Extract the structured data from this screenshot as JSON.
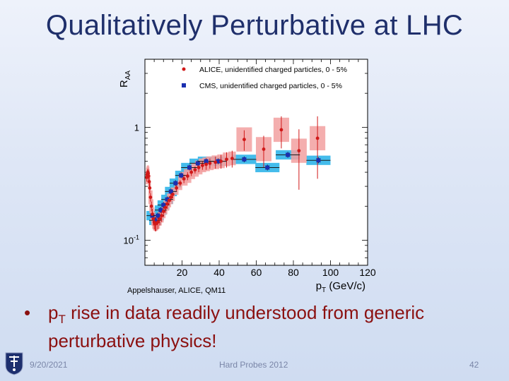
{
  "slide": {
    "title": "Qualitatively Perturbative at LHC",
    "credit": "Appelshauser, ALICE, QM11",
    "bullet_prefix": "p",
    "bullet_sub": "T",
    "bullet_text": " rise in data readily understood from generic perturbative physics!",
    "footer_date": "9/20/2021",
    "footer_center": "Hard Probes 2012",
    "footer_page": "42",
    "colors": {
      "title": "#1f2f6b",
      "bullet": "#8b1010",
      "alice": "#d01818",
      "cms": "#1a2fb0",
      "alice_band": "#f2a0a0",
      "cms_band": "#3ab8ea"
    }
  },
  "chart_data": {
    "type": "scatter",
    "xlabel": "pT (GeV/c)",
    "xlabel_main": "p",
    "xlabel_sub": "T",
    "xlabel_unit": " (GeV/c)",
    "ylabel_main": "R",
    "ylabel_sub": "AA",
    "xlim": [
      0,
      120
    ],
    "ylim": [
      0.06,
      4.0
    ],
    "yscale": "log",
    "xticks": [
      20,
      40,
      60,
      80,
      100,
      120
    ],
    "xtick_labels": [
      "20",
      "40",
      "60",
      "80",
      "100",
      "120"
    ],
    "yticks": [
      {
        "value": 1,
        "label": "1",
        "exp": ""
      },
      {
        "value": 0.1,
        "label": "10",
        "exp": "-1"
      }
    ],
    "legend": {
      "placement": "top",
      "entries": [
        {
          "label": "ALICE, unidentified charged particles, 0 - 5%"
        },
        {
          "label": "CMS, unidentified charged particles, 0 - 5%"
        }
      ]
    },
    "series": [
      {
        "name": "ALICE, unidentified charged particles, 0 - 5%",
        "marker": "circle",
        "points": [
          {
            "x": 1.0,
            "y": 0.36,
            "e": 0.03
          },
          {
            "x": 1.2,
            "y": 0.38,
            "e": 0.03
          },
          {
            "x": 1.4,
            "y": 0.39,
            "e": 0.03
          },
          {
            "x": 1.6,
            "y": 0.4,
            "e": 0.03
          },
          {
            "x": 1.8,
            "y": 0.39,
            "e": 0.03
          },
          {
            "x": 2.0,
            "y": 0.37,
            "e": 0.03
          },
          {
            "x": 2.3,
            "y": 0.33,
            "e": 0.03
          },
          {
            "x": 2.6,
            "y": 0.29,
            "e": 0.03
          },
          {
            "x": 3.0,
            "y": 0.24,
            "e": 0.02
          },
          {
            "x": 3.5,
            "y": 0.2,
            "e": 0.02
          },
          {
            "x": 4.0,
            "y": 0.17,
            "e": 0.02
          },
          {
            "x": 4.5,
            "y": 0.155,
            "e": 0.02
          },
          {
            "x": 5.0,
            "y": 0.145,
            "e": 0.02
          },
          {
            "x": 5.5,
            "y": 0.14,
            "e": 0.02
          },
          {
            "x": 6.0,
            "y": 0.14,
            "e": 0.02
          },
          {
            "x": 7.0,
            "y": 0.145,
            "e": 0.02
          },
          {
            "x": 8.0,
            "y": 0.155,
            "e": 0.02
          },
          {
            "x": 9.0,
            "y": 0.165,
            "e": 0.02
          },
          {
            "x": 10.0,
            "y": 0.18,
            "e": 0.02
          },
          {
            "x": 11.0,
            "y": 0.195,
            "e": 0.02
          },
          {
            "x": 12.0,
            "y": 0.21,
            "e": 0.02
          },
          {
            "x": 13.0,
            "y": 0.225,
            "e": 0.02
          },
          {
            "x": 14.0,
            "y": 0.24,
            "e": 0.02
          },
          {
            "x": 15.0,
            "y": 0.255,
            "e": 0.02
          },
          {
            "x": 17.0,
            "y": 0.29,
            "e": 0.02
          },
          {
            "x": 19.0,
            "y": 0.32,
            "e": 0.02
          },
          {
            "x": 21.0,
            "y": 0.35,
            "e": 0.03
          },
          {
            "x": 23.0,
            "y": 0.37,
            "e": 0.03
          },
          {
            "x": 25.0,
            "y": 0.4,
            "e": 0.03
          },
          {
            "x": 27.0,
            "y": 0.42,
            "e": 0.03
          },
          {
            "x": 29.0,
            "y": 0.44,
            "e": 0.04
          },
          {
            "x": 31.0,
            "y": 0.46,
            "e": 0.04
          },
          {
            "x": 33.0,
            "y": 0.47,
            "e": 0.05
          },
          {
            "x": 35.0,
            "y": 0.48,
            "e": 0.05
          },
          {
            "x": 38.0,
            "y": 0.49,
            "e": 0.06
          },
          {
            "x": 41.0,
            "y": 0.5,
            "e": 0.07
          },
          {
            "x": 44.0,
            "y": 0.52,
            "e": 0.08
          },
          {
            "x": 47.0,
            "y": 0.53,
            "e": 0.09
          },
          {
            "x": 53.5,
            "y": 0.78,
            "e": 0.16
          },
          {
            "x": 64.0,
            "y": 0.64,
            "e": 0.2
          },
          {
            "x": 73.5,
            "y": 0.95,
            "e": 0.3
          },
          {
            "x": 83.0,
            "y": 0.62,
            "e": 0.34
          },
          {
            "x": 93.0,
            "y": 0.8,
            "e": 0.45
          }
        ]
      },
      {
        "name": "CMS, unidentified charged particles, 0 - 5%",
        "marker": "square",
        "points": [
          {
            "x": 4.0,
            "y": 0.165
          },
          {
            "x": 5.5,
            "y": 0.15
          },
          {
            "x": 7.0,
            "y": 0.165
          },
          {
            "x": 8.5,
            "y": 0.185
          },
          {
            "x": 10.0,
            "y": 0.205
          },
          {
            "x": 12.0,
            "y": 0.23
          },
          {
            "x": 14.0,
            "y": 0.27
          },
          {
            "x": 16.5,
            "y": 0.32
          },
          {
            "x": 19.5,
            "y": 0.375
          },
          {
            "x": 24.0,
            "y": 0.44
          },
          {
            "x": 28.5,
            "y": 0.48
          },
          {
            "x": 33.0,
            "y": 0.5
          },
          {
            "x": 39.5,
            "y": 0.5
          },
          {
            "x": 53.5,
            "y": 0.52
          },
          {
            "x": 66.0,
            "y": 0.44
          },
          {
            "x": 77.0,
            "y": 0.57
          },
          {
            "x": 93.5,
            "y": 0.51
          }
        ]
      }
    ]
  }
}
